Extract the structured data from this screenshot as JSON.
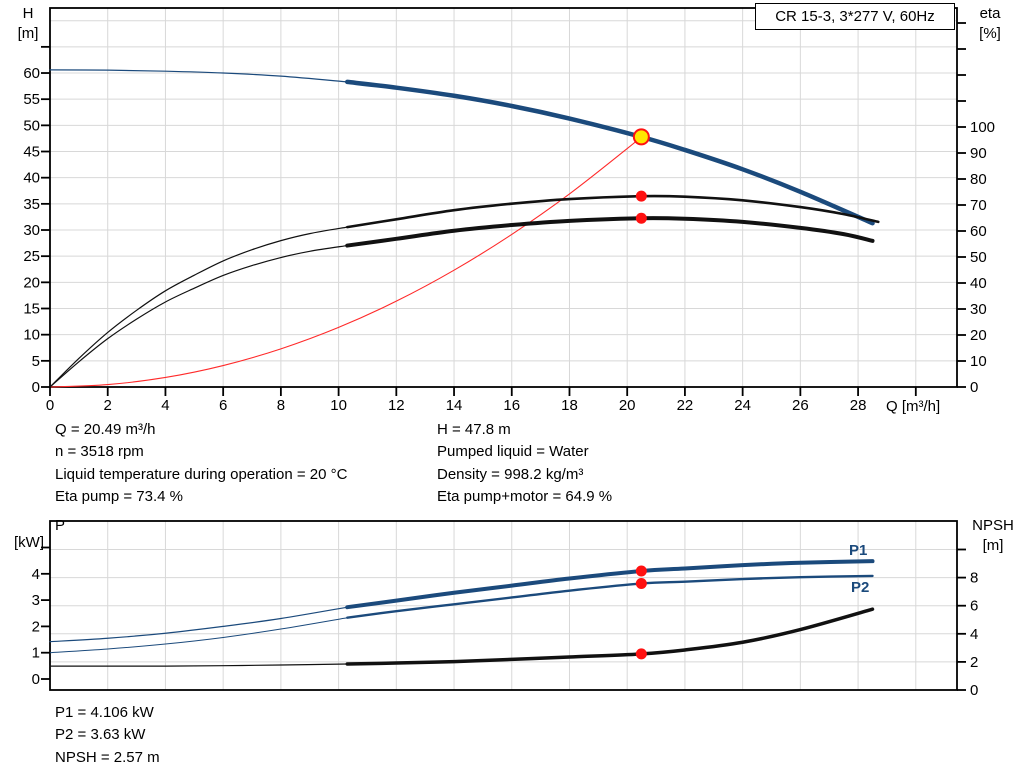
{
  "title_box": "CR 15-3, 3*277 V, 60Hz",
  "top_chart": {
    "left_axis_title": "H",
    "left_axis_unit": "[m]",
    "right_axis_title": "eta",
    "right_axis_unit": "[%]",
    "x_axis_label": "Q [m³/h]"
  },
  "bottom_chart": {
    "left_axis_title": "P",
    "left_axis_unit": "[kW]",
    "right_axis_title": "NPSH",
    "right_axis_unit": "[m]",
    "p1_label": "P1",
    "p2_label": "P2"
  },
  "info_top_left": [
    "Q = 20.49 m³/h",
    "n = 3518 rpm",
    "Liquid temperature during operation = 20 °C",
    "Eta pump = 73.4 %"
  ],
  "info_top_right": [
    "H = 47.8 m",
    "Pumped liquid = Water",
    "Density = 998.2 kg/m³",
    "Eta pump+motor = 64.9 %"
  ],
  "info_bottom": [
    "P1 = 4.106 kW",
    "P2 = 3.63 kW",
    "NPSH = 2.57 m"
  ],
  "colors": {
    "curve_blue": "#1b4a7c",
    "curve_black": "#111111",
    "curve_red": "#ff2a2a",
    "dot_red": "#ff1111",
    "duty_yellow": "#ffe600",
    "grid": "#d8d8d8",
    "frame": "#000000"
  },
  "chart_data": [
    {
      "type": "line",
      "title": "CR 15-3, 3*277 V, 60Hz",
      "x_axis": {
        "label": "Q [m³/h]",
        "min": 0,
        "max": 31.4,
        "ticks": [
          0,
          2,
          4,
          6,
          8,
          10,
          12,
          14,
          16,
          18,
          20,
          22,
          24,
          26,
          28,
          30
        ],
        "tick_labels": [
          "0",
          "2",
          "4",
          "6",
          "8",
          "10",
          "12",
          "14",
          "16",
          "18",
          "20",
          "22",
          "24",
          "26",
          "28",
          ""
        ]
      },
      "y_left": {
        "label": "H [m]",
        "min": 0,
        "max": 72.5,
        "ticks": [
          0,
          5,
          10,
          15,
          20,
          25,
          30,
          35,
          40,
          45,
          50,
          55,
          60,
          65
        ],
        "tick_labels": [
          "0",
          "5",
          "10",
          "15",
          "20",
          "25",
          "30",
          "35",
          "40",
          "45",
          "50",
          "55",
          "60",
          ""
        ],
        "grid": [
          5,
          10,
          15,
          20,
          25,
          30,
          35,
          40,
          45,
          50,
          55,
          60,
          65,
          70
        ]
      },
      "y_right": {
        "label": "eta [%]",
        "min": 0,
        "max": 145,
        "ticks": [
          0,
          10,
          20,
          30,
          40,
          50,
          60,
          70,
          80,
          90,
          100,
          110,
          120,
          130,
          140
        ],
        "tick_labels": [
          "0",
          "10",
          "20",
          "30",
          "40",
          "50",
          "60",
          "70",
          "80",
          "90",
          "100",
          "",
          "",
          "",
          ""
        ]
      },
      "duty_point": {
        "Q": 20.49,
        "H": 47.8,
        "eta_pump": 73.4,
        "eta_pump_motor": 64.9
      },
      "series": [
        {
          "name": "qh-curve-thin",
          "axis": "left",
          "color": "#1b4a7c",
          "width": 1.2,
          "points": [
            [
              0,
              60.6
            ],
            [
              2,
              60.55
            ],
            [
              4,
              60.35
            ],
            [
              6,
              60.0
            ],
            [
              8,
              59.4
            ],
            [
              10.3,
              58.3
            ]
          ]
        },
        {
          "name": "qh-curve",
          "axis": "left",
          "color": "#1b4a7c",
          "width": 4.5,
          "points": [
            [
              10.3,
              58.3
            ],
            [
              12,
              57.2
            ],
            [
              14,
              55.65
            ],
            [
              16,
              53.7
            ],
            [
              18,
              51.3
            ],
            [
              20.49,
              47.8
            ],
            [
              22,
              45.3
            ],
            [
              24,
              41.6
            ],
            [
              26,
              37.3
            ],
            [
              28.5,
              31.3
            ]
          ]
        },
        {
          "name": "system-curve",
          "axis": "left",
          "color": "#ff2a2a",
          "width": 1.1,
          "points": [
            [
              0,
              0
            ],
            [
              2,
              0.46
            ],
            [
              4,
              1.82
            ],
            [
              6,
              4.1
            ],
            [
              8,
              7.29
            ],
            [
              10,
              11.39
            ],
            [
              12,
              16.4
            ],
            [
              14,
              22.32
            ],
            [
              16,
              29.16
            ],
            [
              18,
              36.9
            ],
            [
              20,
              45.56
            ],
            [
              20.49,
              47.8
            ]
          ]
        },
        {
          "name": "eta-pump-curve-thin",
          "axis": "right",
          "color": "#111111",
          "width": 1.2,
          "points": [
            [
              0,
              0
            ],
            [
              1,
              11
            ],
            [
              2,
              21
            ],
            [
              3,
              29.5
            ],
            [
              4,
              37
            ],
            [
              5,
              43
            ],
            [
              6,
              48.5
            ],
            [
              7,
              52.8
            ],
            [
              8,
              56.3
            ],
            [
              9,
              59
            ],
            [
              10.3,
              61.5
            ]
          ]
        },
        {
          "name": "eta-pump-curve",
          "axis": "right",
          "color": "#111111",
          "width": 2.6,
          "points": [
            [
              10.3,
              61.5
            ],
            [
              12,
              64.5
            ],
            [
              14,
              68
            ],
            [
              16,
              70.5
            ],
            [
              18,
              72.3
            ],
            [
              20.49,
              73.4
            ],
            [
              22,
              73.2
            ],
            [
              24,
              71.8
            ],
            [
              26,
              69.2
            ],
            [
              27.5,
              66.5
            ],
            [
              28.7,
              63.5
            ]
          ]
        },
        {
          "name": "eta-pump-motor-curve-thin",
          "axis": "right",
          "color": "#111111",
          "width": 1.2,
          "points": [
            [
              0,
              0
            ],
            [
              1,
              9.7
            ],
            [
              2,
              18.6
            ],
            [
              3,
              26.1
            ],
            [
              4,
              32.7
            ],
            [
              5,
              38
            ],
            [
              6,
              42.9
            ],
            [
              7,
              46.7
            ],
            [
              8,
              49.8
            ],
            [
              9,
              52.2
            ],
            [
              10.3,
              54.4
            ]
          ]
        },
        {
          "name": "eta-pump-motor-curve",
          "axis": "right",
          "color": "#111111",
          "width": 4,
          "points": [
            [
              10.3,
              54.4
            ],
            [
              12,
              57
            ],
            [
              14,
              60.1
            ],
            [
              16,
              62.3
            ],
            [
              18,
              63.9
            ],
            [
              20.49,
              64.9
            ],
            [
              22,
              64.7
            ],
            [
              24,
              63.5
            ],
            [
              26,
              61.2
            ],
            [
              27.5,
              58.8
            ],
            [
              28.5,
              56.2
            ]
          ]
        }
      ],
      "markers": [
        {
          "name": "duty-point",
          "axis": "left",
          "x": 20.49,
          "y": 47.8,
          "r": 7.5,
          "fill": "#ffe600",
          "stroke": "#ff1111",
          "sw": 2,
          "interactable": true
        },
        {
          "name": "eta-pump-dot",
          "axis": "right",
          "x": 20.49,
          "y": 73.4,
          "r": 5.5,
          "fill": "#ff1111",
          "stroke": "none",
          "sw": 0,
          "interactable": false
        },
        {
          "name": "eta-pump-motor-dot",
          "axis": "right",
          "x": 20.49,
          "y": 64.9,
          "r": 5.5,
          "fill": "#ff1111",
          "stroke": "none",
          "sw": 0,
          "interactable": false
        }
      ]
    },
    {
      "type": "line",
      "title": "Power and NPSH curves",
      "x_axis": {
        "label": "",
        "min": 0,
        "max": 31.4,
        "ticks": [],
        "tick_labels": []
      },
      "y_left": {
        "label": "P [kW]",
        "min": 0,
        "max": 6,
        "ticks": [
          0,
          1,
          2,
          3,
          4,
          5
        ],
        "tick_labels": [
          "0",
          "1",
          "2",
          "3",
          "4",
          ""
        ]
      },
      "y_right": {
        "label": "NPSH [m]",
        "min": 0,
        "max": 12,
        "ticks": [
          0,
          2,
          4,
          6,
          8,
          10
        ],
        "tick_labels": [
          "0",
          "2",
          "4",
          "6",
          "8",
          ""
        ],
        "grid": [
          2,
          4,
          6,
          8,
          10
        ]
      },
      "duty_point": {
        "Q": 20.49,
        "P1": 4.106,
        "P2": 3.63,
        "NPSH": 2.57
      },
      "series": [
        {
          "name": "p1-curve-thin",
          "axis": "left",
          "color": "#1b4a7c",
          "width": 1.2,
          "points": [
            [
              0,
              1.42
            ],
            [
              2,
              1.55
            ],
            [
              4,
              1.74
            ],
            [
              6,
              2.0
            ],
            [
              8,
              2.3
            ],
            [
              10.3,
              2.73
            ]
          ]
        },
        {
          "name": "p1-curve",
          "axis": "left",
          "color": "#1b4a7c",
          "width": 4,
          "points": [
            [
              10.3,
              2.73
            ],
            [
              12,
              2.98
            ],
            [
              14,
              3.28
            ],
            [
              16,
              3.55
            ],
            [
              18,
              3.82
            ],
            [
              20.49,
              4.106
            ],
            [
              22,
              4.2
            ],
            [
              24,
              4.33
            ],
            [
              26,
              4.42
            ],
            [
              28.5,
              4.48
            ]
          ]
        },
        {
          "name": "p2-curve-thin",
          "axis": "left",
          "color": "#1b4a7c",
          "width": 1,
          "points": [
            [
              0,
              1.0
            ],
            [
              2,
              1.14
            ],
            [
              4,
              1.33
            ],
            [
              6,
              1.58
            ],
            [
              8,
              1.9
            ],
            [
              10.3,
              2.33
            ]
          ]
        },
        {
          "name": "p2-curve",
          "axis": "left",
          "color": "#1b4a7c",
          "width": 2.4,
          "points": [
            [
              10.3,
              2.33
            ],
            [
              12,
              2.58
            ],
            [
              14,
              2.84
            ],
            [
              16,
              3.1
            ],
            [
              18,
              3.36
            ],
            [
              20.49,
              3.63
            ],
            [
              22,
              3.7
            ],
            [
              24,
              3.8
            ],
            [
              26,
              3.87
            ],
            [
              28.5,
              3.92
            ]
          ]
        },
        {
          "name": "npsh-curve-thin",
          "axis": "right",
          "color": "#111111",
          "width": 1.2,
          "points": [
            [
              0,
              1.7
            ],
            [
              2,
              1.7
            ],
            [
              4,
              1.7
            ],
            [
              6,
              1.73
            ],
            [
              8,
              1.78
            ],
            [
              10.3,
              1.85
            ]
          ]
        },
        {
          "name": "npsh-curve",
          "axis": "right",
          "color": "#111111",
          "width": 3.5,
          "points": [
            [
              10.3,
              1.85
            ],
            [
              12,
              1.92
            ],
            [
              14,
              2.02
            ],
            [
              16,
              2.18
            ],
            [
              18,
              2.35
            ],
            [
              20.49,
              2.57
            ],
            [
              22,
              2.85
            ],
            [
              24,
              3.4
            ],
            [
              26,
              4.3
            ],
            [
              28.5,
              5.75
            ]
          ]
        }
      ],
      "markers": [
        {
          "name": "p1-dot",
          "axis": "left",
          "x": 20.49,
          "y": 4.106,
          "r": 5.5,
          "fill": "#ff1111",
          "stroke": "none",
          "sw": 0,
          "interactable": false
        },
        {
          "name": "p2-dot",
          "axis": "left",
          "x": 20.49,
          "y": 3.63,
          "r": 5.5,
          "fill": "#ff1111",
          "stroke": "none",
          "sw": 0,
          "interactable": false
        },
        {
          "name": "npsh-dot",
          "axis": "right",
          "x": 20.49,
          "y": 2.57,
          "r": 5.5,
          "fill": "#ff1111",
          "stroke": "none",
          "sw": 0,
          "interactable": false
        }
      ]
    }
  ]
}
